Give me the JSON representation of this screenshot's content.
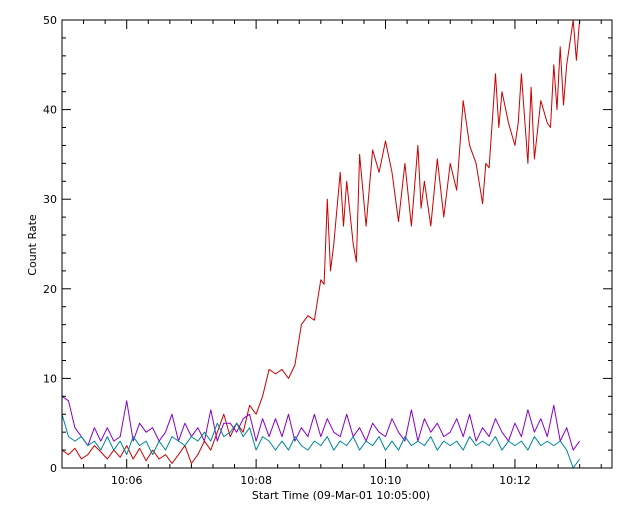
{
  "chart_data": {
    "type": "line",
    "title": "",
    "xlabel": "Start Time (09-Mar-01 10:05:00)",
    "ylabel": "Count Rate",
    "x_unit": "minutes after 10:05:00",
    "xlim": [
      0,
      8.5
    ],
    "ylim": [
      0,
      50
    ],
    "x_ticks": [
      {
        "value": 1,
        "label": "10:06"
      },
      {
        "value": 3,
        "label": "10:08"
      },
      {
        "value": 5,
        "label": "10:10"
      },
      {
        "value": 7,
        "label": "10:12"
      }
    ],
    "y_ticks": [
      {
        "value": 0,
        "label": "0"
      },
      {
        "value": 10,
        "label": "10"
      },
      {
        "value": 20,
        "label": "20"
      },
      {
        "value": 30,
        "label": "30"
      },
      {
        "value": 40,
        "label": "40"
      },
      {
        "value": 50,
        "label": "50"
      }
    ],
    "grid": false,
    "legend": "none",
    "series": [
      {
        "color": "#cc0000",
        "points": [
          [
            0.0,
            2.0
          ],
          [
            0.1,
            1.5
          ],
          [
            0.2,
            2.2
          ],
          [
            0.3,
            1.0
          ],
          [
            0.4,
            1.5
          ],
          [
            0.5,
            2.5
          ],
          [
            0.6,
            1.8
          ],
          [
            0.7,
            1.0
          ],
          [
            0.8,
            2.0
          ],
          [
            0.9,
            1.2
          ],
          [
            1.0,
            2.5
          ],
          [
            1.1,
            1.0
          ],
          [
            1.2,
            2.2
          ],
          [
            1.3,
            0.8
          ],
          [
            1.4,
            2.0
          ],
          [
            1.5,
            1.0
          ],
          [
            1.6,
            1.5
          ],
          [
            1.7,
            0.5
          ],
          [
            1.8,
            1.5
          ],
          [
            1.9,
            2.5
          ],
          [
            2.0,
            0.5
          ],
          [
            2.1,
            1.5
          ],
          [
            2.2,
            3.0
          ],
          [
            2.3,
            2.0
          ],
          [
            2.4,
            4.0
          ],
          [
            2.5,
            6.0
          ],
          [
            2.6,
            3.5
          ],
          [
            2.7,
            5.0
          ],
          [
            2.8,
            4.0
          ],
          [
            2.9,
            7.0
          ],
          [
            3.0,
            6.0
          ],
          [
            3.1,
            8.0
          ],
          [
            3.2,
            11.0
          ],
          [
            3.3,
            10.5
          ],
          [
            3.4,
            11.0
          ],
          [
            3.5,
            10.0
          ],
          [
            3.6,
            11.5
          ],
          [
            3.7,
            16.0
          ],
          [
            3.8,
            17.0
          ],
          [
            3.9,
            16.5
          ],
          [
            4.0,
            21.0
          ],
          [
            4.05,
            20.5
          ],
          [
            4.1,
            30.0
          ],
          [
            4.15,
            22.0
          ],
          [
            4.2,
            25.0
          ],
          [
            4.3,
            33.0
          ],
          [
            4.35,
            27.0
          ],
          [
            4.4,
            32.0
          ],
          [
            4.5,
            25.0
          ],
          [
            4.55,
            23.0
          ],
          [
            4.6,
            35.0
          ],
          [
            4.7,
            27.0
          ],
          [
            4.8,
            35.5
          ],
          [
            4.9,
            33.0
          ],
          [
            5.0,
            36.5
          ],
          [
            5.1,
            33.0
          ],
          [
            5.2,
            27.5
          ],
          [
            5.3,
            34.0
          ],
          [
            5.4,
            27.0
          ],
          [
            5.5,
            36.0
          ],
          [
            5.55,
            29.0
          ],
          [
            5.6,
            32.0
          ],
          [
            5.7,
            27.0
          ],
          [
            5.8,
            34.5
          ],
          [
            5.9,
            28.0
          ],
          [
            6.0,
            34.0
          ],
          [
            6.1,
            31.0
          ],
          [
            6.2,
            41.0
          ],
          [
            6.3,
            36.0
          ],
          [
            6.4,
            34.0
          ],
          [
            6.5,
            29.5
          ],
          [
            6.55,
            34.0
          ],
          [
            6.6,
            33.5
          ],
          [
            6.7,
            44.0
          ],
          [
            6.75,
            38.0
          ],
          [
            6.8,
            42.0
          ],
          [
            6.9,
            38.5
          ],
          [
            7.0,
            36.0
          ],
          [
            7.05,
            38.5
          ],
          [
            7.1,
            44.0
          ],
          [
            7.2,
            34.0
          ],
          [
            7.25,
            42.5
          ],
          [
            7.3,
            34.5
          ],
          [
            7.4,
            41.0
          ],
          [
            7.5,
            38.5
          ],
          [
            7.55,
            38.0
          ],
          [
            7.6,
            45.0
          ],
          [
            7.65,
            40.0
          ],
          [
            7.7,
            47.0
          ],
          [
            7.75,
            40.5
          ],
          [
            7.8,
            45.0
          ],
          [
            7.9,
            50.0
          ],
          [
            7.95,
            45.5
          ],
          [
            8.0,
            50.0
          ]
        ]
      },
      {
        "color": "#8800cc",
        "points": [
          [
            0.0,
            8.0
          ],
          [
            0.1,
            7.5
          ],
          [
            0.2,
            4.5
          ],
          [
            0.3,
            3.5
          ],
          [
            0.4,
            2.5
          ],
          [
            0.5,
            4.5
          ],
          [
            0.6,
            3.0
          ],
          [
            0.7,
            4.5
          ],
          [
            0.8,
            3.0
          ],
          [
            0.9,
            3.5
          ],
          [
            1.0,
            7.5
          ],
          [
            1.1,
            3.0
          ],
          [
            1.2,
            5.0
          ],
          [
            1.3,
            4.0
          ],
          [
            1.4,
            4.5
          ],
          [
            1.5,
            3.0
          ],
          [
            1.6,
            4.0
          ],
          [
            1.7,
            6.0
          ],
          [
            1.8,
            3.0
          ],
          [
            1.9,
            5.0
          ],
          [
            2.0,
            3.5
          ],
          [
            2.1,
            4.5
          ],
          [
            2.2,
            3.0
          ],
          [
            2.3,
            6.5
          ],
          [
            2.4,
            3.0
          ],
          [
            2.5,
            5.0
          ],
          [
            2.6,
            5.0
          ],
          [
            2.7,
            4.0
          ],
          [
            2.8,
            5.5
          ],
          [
            2.9,
            6.0
          ],
          [
            3.0,
            3.0
          ],
          [
            3.1,
            5.5
          ],
          [
            3.2,
            3.5
          ],
          [
            3.3,
            5.5
          ],
          [
            3.4,
            3.5
          ],
          [
            3.5,
            6.0
          ],
          [
            3.6,
            3.0
          ],
          [
            3.7,
            4.5
          ],
          [
            3.8,
            3.5
          ],
          [
            3.9,
            6.0
          ],
          [
            4.0,
            3.5
          ],
          [
            4.1,
            5.5
          ],
          [
            4.2,
            4.0
          ],
          [
            4.3,
            3.5
          ],
          [
            4.4,
            6.0
          ],
          [
            4.5,
            3.5
          ],
          [
            4.6,
            4.5
          ],
          [
            4.7,
            3.0
          ],
          [
            4.8,
            5.0
          ],
          [
            4.9,
            4.0
          ],
          [
            5.0,
            3.5
          ],
          [
            5.1,
            5.5
          ],
          [
            5.2,
            4.0
          ],
          [
            5.3,
            3.0
          ],
          [
            5.4,
            6.5
          ],
          [
            5.5,
            3.0
          ],
          [
            5.6,
            5.5
          ],
          [
            5.7,
            4.0
          ],
          [
            5.8,
            5.0
          ],
          [
            5.9,
            3.5
          ],
          [
            6.0,
            4.0
          ],
          [
            6.1,
            5.5
          ],
          [
            6.2,
            3.5
          ],
          [
            6.3,
            6.0
          ],
          [
            6.4,
            3.0
          ],
          [
            6.5,
            4.5
          ],
          [
            6.6,
            3.5
          ],
          [
            6.7,
            5.5
          ],
          [
            6.8,
            4.0
          ],
          [
            6.9,
            3.0
          ],
          [
            7.0,
            5.0
          ],
          [
            7.1,
            3.5
          ],
          [
            7.2,
            6.5
          ],
          [
            7.3,
            4.0
          ],
          [
            7.4,
            5.5
          ],
          [
            7.5,
            3.5
          ],
          [
            7.6,
            7.0
          ],
          [
            7.7,
            3.0
          ],
          [
            7.8,
            4.5
          ],
          [
            7.9,
            2.0
          ],
          [
            8.0,
            3.0
          ]
        ]
      },
      {
        "color": "#008899",
        "points": [
          [
            0.0,
            6.0
          ],
          [
            0.1,
            3.5
          ],
          [
            0.2,
            3.0
          ],
          [
            0.3,
            3.5
          ],
          [
            0.4,
            2.5
          ],
          [
            0.5,
            3.0
          ],
          [
            0.6,
            2.0
          ],
          [
            0.7,
            3.5
          ],
          [
            0.8,
            2.0
          ],
          [
            0.9,
            3.0
          ],
          [
            1.0,
            1.5
          ],
          [
            1.1,
            3.5
          ],
          [
            1.2,
            2.5
          ],
          [
            1.3,
            3.0
          ],
          [
            1.4,
            1.5
          ],
          [
            1.5,
            3.0
          ],
          [
            1.6,
            2.0
          ],
          [
            1.7,
            3.5
          ],
          [
            1.8,
            3.0
          ],
          [
            1.9,
            2.5
          ],
          [
            2.0,
            3.5
          ],
          [
            2.1,
            3.0
          ],
          [
            2.2,
            4.0
          ],
          [
            2.3,
            3.0
          ],
          [
            2.4,
            5.0
          ],
          [
            2.5,
            3.5
          ],
          [
            2.6,
            4.0
          ],
          [
            2.7,
            5.0
          ],
          [
            2.8,
            3.5
          ],
          [
            2.9,
            4.5
          ],
          [
            3.0,
            2.0
          ],
          [
            3.1,
            3.5
          ],
          [
            3.2,
            3.0
          ],
          [
            3.3,
            2.0
          ],
          [
            3.4,
            3.0
          ],
          [
            3.5,
            2.0
          ],
          [
            3.6,
            3.5
          ],
          [
            3.7,
            2.5
          ],
          [
            3.8,
            2.0
          ],
          [
            3.9,
            3.0
          ],
          [
            4.0,
            2.5
          ],
          [
            4.1,
            3.5
          ],
          [
            4.2,
            2.0
          ],
          [
            4.3,
            3.0
          ],
          [
            4.4,
            2.5
          ],
          [
            4.5,
            3.5
          ],
          [
            4.6,
            2.0
          ],
          [
            4.7,
            3.0
          ],
          [
            4.8,
            2.5
          ],
          [
            4.9,
            3.5
          ],
          [
            5.0,
            2.0
          ],
          [
            5.1,
            3.0
          ],
          [
            5.2,
            2.0
          ],
          [
            5.3,
            3.5
          ],
          [
            5.4,
            2.5
          ],
          [
            5.5,
            3.0
          ],
          [
            5.6,
            2.5
          ],
          [
            5.7,
            3.5
          ],
          [
            5.8,
            2.0
          ],
          [
            5.9,
            3.0
          ],
          [
            6.0,
            2.5
          ],
          [
            6.1,
            3.0
          ],
          [
            6.2,
            2.0
          ],
          [
            6.3,
            3.5
          ],
          [
            6.4,
            2.5
          ],
          [
            6.5,
            3.0
          ],
          [
            6.6,
            2.5
          ],
          [
            6.7,
            3.5
          ],
          [
            6.8,
            2.0
          ],
          [
            6.9,
            3.0
          ],
          [
            7.0,
            2.5
          ],
          [
            7.1,
            3.0
          ],
          [
            7.2,
            2.0
          ],
          [
            7.3,
            3.5
          ],
          [
            7.4,
            2.5
          ],
          [
            7.5,
            3.0
          ],
          [
            7.6,
            2.5
          ],
          [
            7.7,
            3.0
          ],
          [
            7.8,
            2.0
          ],
          [
            7.9,
            0.0
          ],
          [
            8.0,
            1.0
          ]
        ]
      }
    ]
  }
}
